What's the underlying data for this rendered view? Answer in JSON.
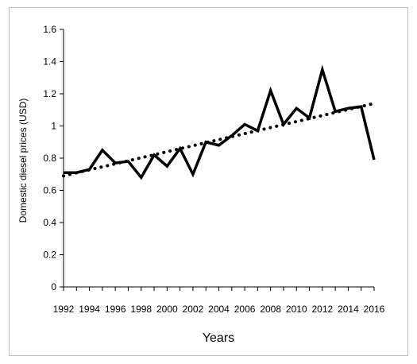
{
  "chart_data": {
    "type": "line",
    "title": "",
    "xlabel": "Years",
    "ylabel": "Domestic diesel prices (USD)",
    "xlim": [
      1992,
      2016
    ],
    "ylim": [
      0,
      1.6
    ],
    "x_ticks": [
      "1992",
      "1994",
      "1996",
      "1998",
      "2000",
      "2002",
      "2004",
      "2006",
      "2008",
      "2010",
      "2012",
      "2014",
      "2016"
    ],
    "y_ticks": [
      "0",
      "0.2",
      "0.4",
      "0.6",
      "0.8",
      "1",
      "1.2",
      "1.4",
      "1.6"
    ],
    "grid": false,
    "legend": "none",
    "series": [
      {
        "style": "solid",
        "color": "#000000",
        "x": [
          1992,
          1993,
          1994,
          1995,
          1996,
          1997,
          1998,
          1999,
          2000,
          2001,
          2002,
          2003,
          2004,
          2005,
          2006,
          2007,
          2008,
          2009,
          2010,
          2011,
          2012,
          2013,
          2014,
          2015,
          2016
        ],
        "y": [
          0.71,
          0.71,
          0.73,
          0.85,
          0.77,
          0.78,
          0.68,
          0.82,
          0.75,
          0.86,
          0.7,
          0.9,
          0.88,
          0.94,
          1.01,
          0.97,
          1.22,
          1.01,
          1.11,
          1.05,
          1.35,
          1.09,
          1.11,
          1.12,
          0.79
        ]
      },
      {
        "style": "dotted",
        "color": "#000000",
        "x": [
          1992,
          2016
        ],
        "y": [
          0.69,
          1.14
        ]
      }
    ]
  }
}
